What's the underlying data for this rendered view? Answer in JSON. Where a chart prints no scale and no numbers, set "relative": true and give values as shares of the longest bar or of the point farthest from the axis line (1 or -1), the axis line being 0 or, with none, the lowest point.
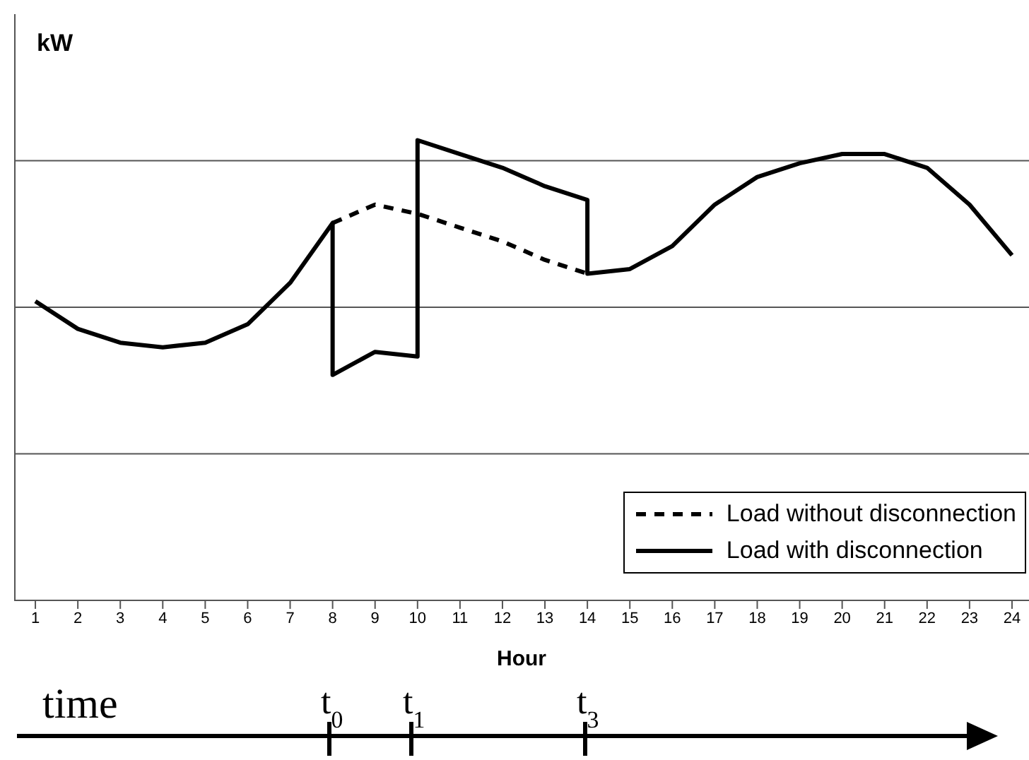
{
  "chart_data": {
    "type": "line",
    "relative": true,
    "ylabel": "kW",
    "xlabel": "Hour",
    "xlim": [
      0.5,
      24.4
    ],
    "xticks": [
      1,
      2,
      3,
      4,
      5,
      6,
      7,
      8,
      9,
      10,
      11,
      12,
      13,
      14,
      15,
      16,
      17,
      18,
      19,
      20,
      21,
      22,
      23,
      24
    ],
    "grid": "y",
    "legend": "bottom right",
    "marker": "none",
    "series": [
      {
        "name": "Load without disconnection",
        "color": "#000000",
        "line_style": "dashed",
        "x": [
          8,
          9,
          10,
          11,
          12,
          13,
          14
        ],
        "values": [
          0.82,
          0.86,
          0.84,
          0.81,
          0.78,
          0.74,
          0.71
        ]
      },
      {
        "name": "Load with disconnection",
        "color": "#000000",
        "line_style": "solid",
        "x": [
          1,
          2,
          3,
          4,
          5,
          6,
          7,
          8,
          8,
          9,
          10,
          10,
          11,
          12,
          13,
          14,
          14,
          15,
          16,
          17,
          18,
          19,
          20,
          21,
          22,
          23,
          24
        ],
        "values": [
          0.65,
          0.59,
          0.56,
          0.55,
          0.56,
          0.6,
          0.69,
          0.82,
          0.49,
          0.54,
          0.53,
          1,
          0.97,
          0.94,
          0.9,
          0.87,
          0.71,
          0.72,
          0.77,
          0.86,
          0.92,
          0.95,
          0.97,
          0.97,
          0.94,
          0.86,
          0.75
        ]
      }
    ],
    "annotations": [
      "time",
      "t$_{0}$",
      "t$_{1}$",
      "t$_{3}$"
    ]
  }
}
